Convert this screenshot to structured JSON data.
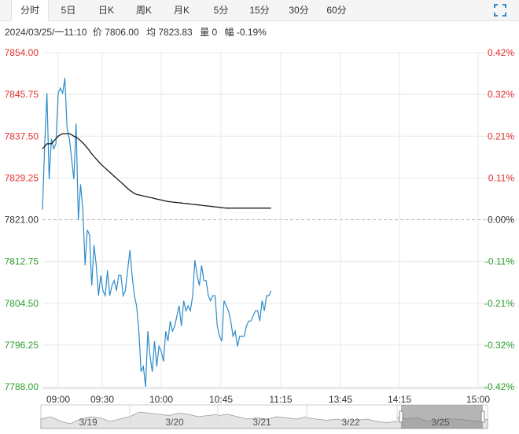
{
  "tabs": [
    {
      "label": "分时",
      "active": true
    },
    {
      "label": "5日"
    },
    {
      "label": "日K"
    },
    {
      "label": "周K"
    },
    {
      "label": "月K"
    },
    {
      "label": "5分"
    },
    {
      "label": "15分"
    },
    {
      "label": "30分"
    },
    {
      "label": "60分"
    }
  ],
  "info": {
    "datetime": "2024/03/25/一11:10",
    "price_label": "价",
    "price": "7806.00",
    "avg_label": "均",
    "avg": "7823.83",
    "vol_label": "量",
    "vol": "0",
    "change_label": "幅",
    "change": "-0.19%"
  },
  "colors": {
    "up": "#e03030",
    "down": "#2ca02c",
    "price_line": "#2e8bc9",
    "avg_line": "#1a1a1a",
    "grid": "#e8e8e8"
  },
  "chart_data": {
    "type": "line",
    "y_ticks_left": [
      "7854.00",
      "7845.75",
      "7837.50",
      "7829.25",
      "7821.00",
      "7812.75",
      "7804.50",
      "7796.25",
      "7788.00"
    ],
    "y_ticks_right": [
      "0.42%",
      "0.32%",
      "0.21%",
      "0.11%",
      "0.00%",
      "-0.11%",
      "-0.21%",
      "-0.32%",
      "-0.42%"
    ],
    "ylim": [
      7788.0,
      7854.0
    ],
    "base_price": 7821.0,
    "x_ticks": [
      "09:00",
      "09:30",
      "10:00",
      "10:45",
      "11:15",
      "13:45",
      "14:15",
      "15:00"
    ],
    "series": [
      {
        "values": [
          7823,
          7836,
          7846,
          7829,
          7837,
          7835,
          7836,
          7846,
          7847,
          7846,
          7849,
          7839,
          7837,
          7833,
          7829,
          7840,
          7821,
          7828,
          7823,
          7812,
          7819,
          7818,
          7808,
          7816,
          7812,
          7806,
          7810,
          7807,
          7806,
          7811,
          7806,
          7808,
          7809,
          7807,
          7810,
          7810,
          7806,
          7807,
          7811,
          7815,
          7810,
          7806,
          7804,
          7799,
          7791,
          7792,
          7788,
          7799,
          7794,
          7791,
          7797,
          7792,
          7796,
          7795,
          7793,
          7799,
          7797,
          7801,
          7799,
          7800,
          7802,
          7804,
          7800,
          7805,
          7803,
          7804,
          7803,
          7806,
          7813,
          7810,
          7808,
          7812,
          7809,
          7809,
          7806,
          7805,
          7806,
          7806,
          7800,
          7798,
          7797,
          7805,
          7804,
          7803,
          7801,
          7798,
          7799,
          7796,
          7798,
          7798,
          7798,
          7800,
          7801,
          7801,
          7802,
          7803,
          7803,
          7801,
          7805,
          7803,
          7806,
          7806,
          7807
        ],
        "color_key": "price_line"
      },
      {
        "values": [
          7835,
          7835.5,
          7836,
          7836,
          7836,
          7836.5,
          7837,
          7837.5,
          7837.8,
          7838,
          7838,
          7838,
          7838,
          7837.8,
          7837.5,
          7837.3,
          7837,
          7836.6,
          7836.2,
          7835.7,
          7835.2,
          7834.6,
          7834,
          7833.5,
          7833,
          7832.5,
          7832,
          7831.6,
          7831.2,
          7830.8,
          7830.4,
          7830,
          7829.6,
          7829.2,
          7828.8,
          7828.4,
          7828,
          7827.6,
          7827.2,
          7826.8,
          7826.5,
          7826.2,
          7826,
          7825.9,
          7825.8,
          7825.7,
          7825.6,
          7825.5,
          7825.4,
          7825.3,
          7825.2,
          7825.1,
          7825,
          7824.9,
          7824.8,
          7824.7,
          7824.6,
          7824.55,
          7824.5,
          7824.45,
          7824.4,
          7824.35,
          7824.3,
          7824.25,
          7824.2,
          7824.15,
          7824.1,
          7824.05,
          7824,
          7823.95,
          7823.9,
          7823.85,
          7823.8,
          7823.75,
          7823.7,
          7823.65,
          7823.6,
          7823.55,
          7823.5,
          7823.45,
          7823.4,
          7823.35,
          7823.3,
          7823.3,
          7823.3,
          7823.3,
          7823.3,
          7823.3,
          7823.3,
          7823.3,
          7823.3,
          7823.3,
          7823.3,
          7823.3,
          7823.3,
          7823.3,
          7823.3,
          7823.3,
          7823.3,
          7823.3,
          7823.3,
          7823.3,
          7823.3
        ],
        "color_key": "avg_line"
      }
    ]
  },
  "navigator": {
    "dates": [
      "3/19",
      "3/20",
      "3/21",
      "3/22",
      "3/25"
    ]
  }
}
